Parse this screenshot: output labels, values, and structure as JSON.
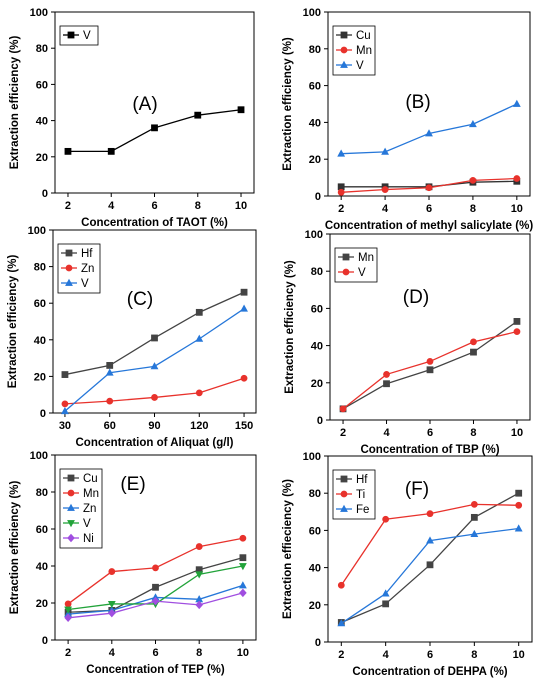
{
  "chart_data": [
    {
      "type": "line",
      "panel_label": "(A)",
      "xlabel": "Concentration of TAOT (%)",
      "ylabel": "Extraction efficiency (%)",
      "xticks": [
        2,
        4,
        6,
        8,
        10
      ],
      "yticks": [
        0,
        20,
        40,
        60,
        80,
        100
      ],
      "xlim": [
        1.4,
        10.6
      ],
      "ylim": [
        0,
        100
      ],
      "legend_position": "top-left",
      "series": [
        {
          "name": "V",
          "color": "#000000",
          "marker": "square",
          "x": [
            2,
            4,
            6,
            8,
            10
          ],
          "y": [
            23,
            23,
            36,
            43,
            46
          ]
        }
      ]
    },
    {
      "type": "line",
      "panel_label": "(B)",
      "xlabel": "Concentration of methyl salicylate (%)",
      "ylabel": "Extraction efficiency (%)",
      "xticks": [
        2,
        4,
        6,
        8,
        10
      ],
      "yticks": [
        0,
        20,
        40,
        60,
        80,
        100
      ],
      "xlim": [
        1.4,
        10.6
      ],
      "ylim": [
        0,
        100
      ],
      "legend_position": "top-left",
      "series": [
        {
          "name": "Cu",
          "color": "#333333",
          "marker": "square",
          "x": [
            2,
            4,
            6,
            8,
            10
          ],
          "y": [
            5,
            5,
            5,
            7.5,
            8
          ]
        },
        {
          "name": "Mn",
          "color": "#e8322c",
          "marker": "circle",
          "x": [
            2,
            4,
            6,
            8,
            10
          ],
          "y": [
            2,
            3.5,
            4.5,
            8.5,
            9.5
          ]
        },
        {
          "name": "V",
          "color": "#2677d9",
          "marker": "triangle-up",
          "x": [
            2,
            4,
            6,
            8,
            10
          ],
          "y": [
            23,
            24,
            34,
            39,
            50
          ]
        }
      ]
    },
    {
      "type": "line",
      "panel_label": "(C)",
      "xlabel": "Concentration of Aliquat (g/l)",
      "ylabel": "Extraction efficiency (%)",
      "xticks": [
        30,
        60,
        90,
        120,
        150
      ],
      "yticks": [
        0,
        20,
        40,
        60,
        80,
        100
      ],
      "xlim": [
        22,
        158
      ],
      "ylim": [
        0,
        100
      ],
      "legend_position": "top-left",
      "series": [
        {
          "name": "Hf",
          "color": "#444444",
          "marker": "square",
          "x": [
            30,
            60,
            90,
            120,
            150
          ],
          "y": [
            21,
            26,
            41,
            55,
            66
          ]
        },
        {
          "name": "Zn",
          "color": "#e8322c",
          "marker": "circle",
          "x": [
            30,
            60,
            90,
            120,
            150
          ],
          "y": [
            5,
            6.5,
            8.5,
            11,
            19
          ]
        },
        {
          "name": "V",
          "color": "#2677d9",
          "marker": "triangle-up",
          "x": [
            30,
            60,
            90,
            120,
            150
          ],
          "y": [
            1,
            22,
            25.5,
            40.5,
            57
          ]
        }
      ]
    },
    {
      "type": "line",
      "panel_label": "(D)",
      "xlabel": "Concentration of TBP (%)",
      "ylabel": "Extraction efficiency (%)",
      "xticks": [
        2,
        4,
        6,
        8,
        10
      ],
      "yticks": [
        0,
        20,
        40,
        60,
        80,
        100
      ],
      "xlim": [
        1.4,
        10.6
      ],
      "ylim": [
        0,
        100
      ],
      "legend_position": "top-left",
      "series": [
        {
          "name": "Mn",
          "color": "#444444",
          "marker": "square",
          "x": [
            2,
            4,
            6,
            8,
            10
          ],
          "y": [
            6,
            19.5,
            27,
            36.5,
            53
          ]
        },
        {
          "name": "V",
          "color": "#e8322c",
          "marker": "circle",
          "x": [
            2,
            4,
            6,
            8,
            10
          ],
          "y": [
            6,
            24.5,
            31.5,
            42,
            47.5
          ]
        }
      ]
    },
    {
      "type": "line",
      "panel_label": "(E)",
      "xlabel": "Concentration of TEP (%)",
      "ylabel": "Extraction efficiency (%)",
      "xticks": [
        2,
        4,
        6,
        8,
        10
      ],
      "yticks": [
        0,
        20,
        40,
        60,
        80,
        100
      ],
      "xlim": [
        1.4,
        10.6
      ],
      "ylim": [
        0,
        100
      ],
      "legend_position": "top-left",
      "series": [
        {
          "name": "Cu",
          "color": "#444444",
          "marker": "square",
          "x": [
            2,
            4,
            6,
            8,
            10
          ],
          "y": [
            15,
            16,
            28.5,
            38,
            44.5
          ]
        },
        {
          "name": "Mn",
          "color": "#e8322c",
          "marker": "circle",
          "x": [
            2,
            4,
            6,
            8,
            10
          ],
          "y": [
            19.5,
            37,
            39,
            50.5,
            55
          ]
        },
        {
          "name": "Zn",
          "color": "#2677d9",
          "marker": "triangle-up",
          "x": [
            2,
            4,
            6,
            8,
            10
          ],
          "y": [
            14,
            16,
            23,
            22,
            29.5
          ]
        },
        {
          "name": "V",
          "color": "#22a33a",
          "marker": "triangle-down",
          "x": [
            2,
            4,
            6,
            8,
            10
          ],
          "y": [
            16.5,
            19.5,
            19.5,
            35.5,
            40
          ]
        },
        {
          "name": "Ni",
          "color": "#a04ee0",
          "marker": "diamond",
          "x": [
            2,
            4,
            6,
            8,
            10
          ],
          "y": [
            12,
            14.5,
            21,
            19,
            25.5
          ]
        }
      ]
    },
    {
      "type": "line",
      "panel_label": "(F)",
      "xlabel": "Concentration of DEHPA (%)",
      "ylabel": "Extraction effieciency (%)",
      "xticks": [
        2,
        4,
        6,
        8,
        10
      ],
      "yticks": [
        0,
        20,
        40,
        60,
        80,
        100
      ],
      "xlim": [
        1.4,
        10.6
      ],
      "ylim": [
        0,
        100
      ],
      "legend_position": "top-left",
      "series": [
        {
          "name": "Hf",
          "color": "#444444",
          "marker": "square",
          "x": [
            2,
            4,
            6,
            8,
            10
          ],
          "y": [
            10.5,
            20.5,
            41.5,
            67,
            80
          ]
        },
        {
          "name": "Ti",
          "color": "#e8322c",
          "marker": "circle",
          "x": [
            2,
            4,
            6,
            8,
            10
          ],
          "y": [
            30.5,
            66,
            69,
            74,
            73.5
          ]
        },
        {
          "name": "Fe",
          "color": "#2677d9",
          "marker": "triangle-up",
          "x": [
            2,
            4,
            6,
            8,
            10
          ],
          "y": [
            10,
            26,
            54.5,
            58,
            61
          ]
        }
      ]
    }
  ]
}
